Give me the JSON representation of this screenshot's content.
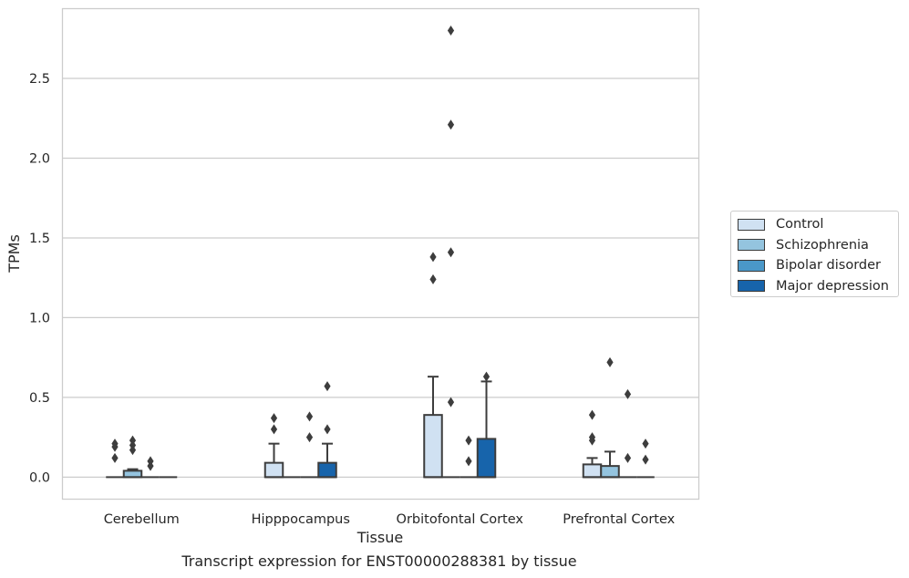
{
  "caption": "Transcript expression for ENST00000288381 by tissue",
  "chart_data": {
    "type": "box",
    "xlabel": "Tissue",
    "ylabel": "TPMs",
    "ylim": [
      -0.135,
      2.94
    ],
    "yticks": [
      0.0,
      0.5,
      1.0,
      1.5,
      2.0,
      2.5
    ],
    "ytick_labels": [
      "0.0",
      "0.5",
      "1.0",
      "1.5",
      "2.0",
      "2.5"
    ],
    "categories": [
      "Cerebellum",
      "Hipppocampus",
      "Orbitofontal Cortex",
      "Prefrontal Cortex"
    ],
    "grid": "horizontal",
    "legend_position": "right",
    "series": [
      {
        "name": "Control",
        "color": "#d0e1f2",
        "boxes": [
          {
            "q1": 0,
            "median": 0,
            "q3": 0,
            "whislo": 0,
            "whishi": 0,
            "fliers": [
              0.21,
              0.19,
              0.12
            ]
          },
          {
            "q1": 0,
            "median": 0,
            "q3": 0.09,
            "whislo": 0,
            "whishi": 0.21,
            "fliers": [
              0.37,
              0.3
            ]
          },
          {
            "q1": 0,
            "median": 0,
            "q3": 0.39,
            "whislo": 0,
            "whishi": 0.63,
            "fliers": [
              1.38,
              1.24
            ]
          },
          {
            "q1": 0,
            "median": 0,
            "q3": 0.08,
            "whislo": 0,
            "whishi": 0.12,
            "fliers": [
              0.39,
              0.25,
              0.23
            ]
          }
        ]
      },
      {
        "name": "Schizophrenia",
        "color": "#94c4df",
        "boxes": [
          {
            "q1": 0,
            "median": 0,
            "q3": 0.04,
            "whislo": 0,
            "whishi": 0.05,
            "fliers": [
              0.23,
              0.2,
              0.17
            ]
          },
          {
            "q1": 0,
            "median": 0,
            "q3": 0,
            "whislo": 0,
            "whishi": 0,
            "fliers": []
          },
          {
            "q1": 0,
            "median": 0,
            "q3": 0,
            "whislo": 0,
            "whishi": 0,
            "fliers": [
              2.8,
              2.21,
              1.41,
              0.47
            ]
          },
          {
            "q1": 0,
            "median": 0,
            "q3": 0.07,
            "whislo": 0,
            "whishi": 0.16,
            "fliers": [
              0.72
            ]
          }
        ]
      },
      {
        "name": "Bipolar disorder",
        "color": "#4a98c9",
        "boxes": [
          {
            "q1": 0,
            "median": 0,
            "q3": 0,
            "whislo": 0,
            "whishi": 0,
            "fliers": [
              0.1,
              0.07
            ]
          },
          {
            "q1": 0,
            "median": 0,
            "q3": 0,
            "whislo": 0,
            "whishi": 0,
            "fliers": [
              0.38,
              0.25
            ]
          },
          {
            "q1": 0,
            "median": 0,
            "q3": 0,
            "whislo": 0,
            "whishi": 0,
            "fliers": [
              0.23,
              0.1
            ]
          },
          {
            "q1": 0,
            "median": 0,
            "q3": 0,
            "whislo": 0,
            "whishi": 0,
            "fliers": [
              0.52,
              0.12
            ]
          }
        ]
      },
      {
        "name": "Major depression",
        "color": "#1764ab",
        "boxes": [
          {
            "q1": 0,
            "median": 0,
            "q3": 0,
            "whislo": 0,
            "whishi": 0,
            "fliers": []
          },
          {
            "q1": 0,
            "median": 0,
            "q3": 0.09,
            "whislo": 0,
            "whishi": 0.21,
            "fliers": [
              0.57,
              0.3
            ]
          },
          {
            "q1": 0,
            "median": 0,
            "q3": 0.24,
            "whislo": 0,
            "whishi": 0.6,
            "fliers": [
              0.63
            ]
          },
          {
            "q1": 0,
            "median": 0,
            "q3": 0,
            "whislo": 0,
            "whishi": 0,
            "fliers": [
              0.21,
              0.11
            ]
          }
        ]
      }
    ]
  }
}
